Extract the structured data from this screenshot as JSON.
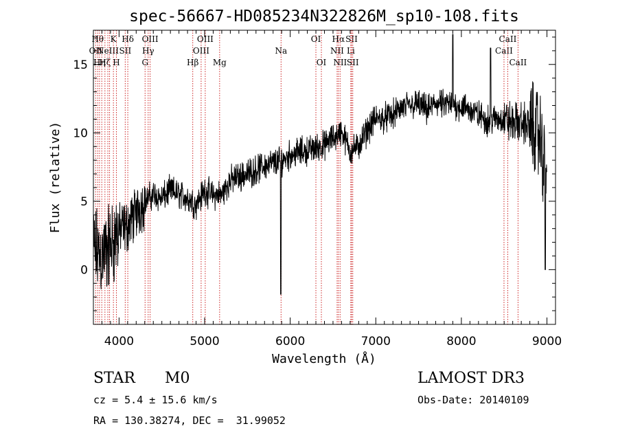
{
  "chart_data": {
    "type": "line",
    "title": "spec-56667-HD085234N322826M_sp10-108.fits",
    "xlabel": "Wavelength (Å)",
    "ylabel": "Flux (relative)",
    "xlim": [
      3700,
      9100
    ],
    "ylim": [
      -4,
      17.5
    ],
    "xticks": [
      {
        "value": 4000,
        "label": "4000"
      },
      {
        "value": 5000,
        "label": "5000"
      },
      {
        "value": 6000,
        "label": "6000"
      },
      {
        "value": 7000,
        "label": "7000"
      },
      {
        "value": 8000,
        "label": "8000"
      },
      {
        "value": 9000,
        "label": "9000"
      }
    ],
    "yticks": [
      {
        "value": 0,
        "label": "0"
      },
      {
        "value": 5,
        "label": "5"
      },
      {
        "value": 10,
        "label": "10"
      },
      {
        "value": 15,
        "label": "15"
      }
    ],
    "line_color": "#000000",
    "marker_color": "#cc2222",
    "continuum": [
      [
        3700,
        1.5
      ],
      [
        3800,
        1.0
      ],
      [
        3900,
        1.8
      ],
      [
        4000,
        2.8
      ],
      [
        4100,
        3.2
      ],
      [
        4200,
        4.2
      ],
      [
        4300,
        5.0
      ],
      [
        4400,
        5.5
      ],
      [
        4500,
        5.2
      ],
      [
        4600,
        5.8
      ],
      [
        4700,
        5.5
      ],
      [
        4800,
        5.2
      ],
      [
        4900,
        4.8
      ],
      [
        5000,
        5.8
      ],
      [
        5100,
        5.4
      ],
      [
        5200,
        5.5
      ],
      [
        5300,
        6.5
      ],
      [
        5400,
        6.8
      ],
      [
        5500,
        7.0
      ],
      [
        5600,
        7.3
      ],
      [
        5700,
        7.6
      ],
      [
        5800,
        7.8
      ],
      [
        5900,
        8.0
      ],
      [
        6000,
        8.4
      ],
      [
        6100,
        8.6
      ],
      [
        6200,
        8.7
      ],
      [
        6300,
        8.9
      ],
      [
        6400,
        9.1
      ],
      [
        6500,
        9.6
      ],
      [
        6600,
        10.1
      ],
      [
        6700,
        8.7
      ],
      [
        6800,
        9.0
      ],
      [
        6900,
        10.2
      ],
      [
        7000,
        11.0
      ],
      [
        7100,
        11.1
      ],
      [
        7200,
        11.3
      ],
      [
        7300,
        11.8
      ],
      [
        7400,
        12.0
      ],
      [
        7500,
        12.1
      ],
      [
        7600,
        11.6
      ],
      [
        7700,
        12.2
      ],
      [
        7800,
        12.0
      ],
      [
        7900,
        12.1
      ],
      [
        8000,
        11.9
      ],
      [
        8100,
        11.7
      ],
      [
        8200,
        11.3
      ],
      [
        8300,
        10.9
      ],
      [
        8400,
        11.0
      ],
      [
        8500,
        11.0
      ],
      [
        8600,
        10.7
      ],
      [
        8700,
        10.8
      ],
      [
        8800,
        10.5
      ],
      [
        8900,
        10.0
      ],
      [
        9000,
        7.0
      ]
    ],
    "features": [
      {
        "x": 5890,
        "y": -1.8
      },
      {
        "x": 7900,
        "y": 17.2
      },
      {
        "x": 8340,
        "y": 16.2
      },
      {
        "x": 8980,
        "y": 0.0
      }
    ],
    "lines": [
      {
        "x": 3726,
        "label": "OII",
        "row": 1
      },
      {
        "x": 3750,
        "label": "Hθ",
        "row": 0
      },
      {
        "x": 3771,
        "label": "Hη",
        "row": 2
      },
      {
        "x": 3798,
        "label": "",
        "row": 0
      },
      {
        "x": 3835,
        "label": "Hζ",
        "row": 2
      },
      {
        "x": 3869,
        "label": "NeIII",
        "row": 1
      },
      {
        "x": 3889,
        "label": "",
        "row": 0
      },
      {
        "x": 3934,
        "label": "K",
        "row": 0
      },
      {
        "x": 3969,
        "label": "H",
        "row": 2
      },
      {
        "x": 4072,
        "label": "SII",
        "row": 1
      },
      {
        "x": 4102,
        "label": "Hδ",
        "row": 0
      },
      {
        "x": 4304,
        "label": "G",
        "row": 2
      },
      {
        "x": 4340,
        "label": "Hγ",
        "row": 1
      },
      {
        "x": 4363,
        "label": "OIII",
        "row": 0
      },
      {
        "x": 4861,
        "label": "Hβ",
        "row": 2
      },
      {
        "x": 4959,
        "label": "OIII",
        "row": 1
      },
      {
        "x": 5007,
        "label": "OIII",
        "row": 0
      },
      {
        "x": 5175,
        "label": "Mg",
        "row": 2
      },
      {
        "x": 5893,
        "label": "Na",
        "row": 1
      },
      {
        "x": 6300,
        "label": "OI",
        "row": 0
      },
      {
        "x": 6364,
        "label": "OI",
        "row": 2
      },
      {
        "x": 6548,
        "label": "NII",
        "row": 1
      },
      {
        "x": 6563,
        "label": "Hα",
        "row": 0
      },
      {
        "x": 6583,
        "label": "NII",
        "row": 2
      },
      {
        "x": 6708,
        "label": "Li",
        "row": 1
      },
      {
        "x": 6717,
        "label": "SII",
        "row": 0
      },
      {
        "x": 6731,
        "label": "SII",
        "row": 2
      },
      {
        "x": 8498,
        "label": "CaII",
        "row": 1
      },
      {
        "x": 8542,
        "label": "CaII",
        "row": 0
      },
      {
        "x": 8662,
        "label": "CaII",
        "row": 2
      }
    ]
  },
  "info": {
    "class": "STAR",
    "subclass": "M0",
    "survey": "LAMOST DR3",
    "cz": "cz = 5.4 ± 15.6 km/s",
    "obs_date": "Obs-Date: 20140109",
    "coords": "RA = 130.38274, DEC =  31.99052"
  }
}
